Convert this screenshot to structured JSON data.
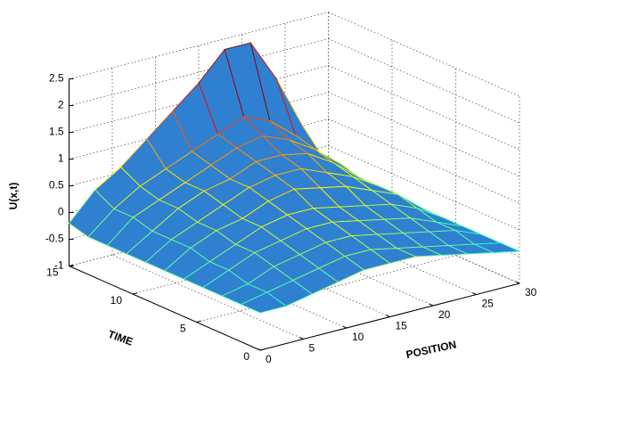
{
  "chart_data": {
    "type": "surface",
    "zlabel": "U(x,t)",
    "ylabel": "TIME",
    "xlabel": "POSITION",
    "x": [
      0,
      3,
      6,
      9,
      12,
      15,
      18,
      21,
      24,
      27,
      30
    ],
    "y": [
      0,
      1.5,
      3,
      4.5,
      6,
      7.5,
      9,
      10.5,
      12,
      13.5,
      15
    ],
    "z": [
      [
        -0.3,
        -0.3,
        -0.2,
        -0.1,
        0,
        0,
        0,
        -0.1,
        -0.2,
        -0.3,
        -0.4
      ],
      [
        -0.3,
        -0.2,
        -0.1,
        0,
        0.1,
        0.1,
        0,
        -0.1,
        -0.2,
        -0.3,
        -0.4
      ],
      [
        -0.3,
        -0.2,
        0,
        0.1,
        0.2,
        0.2,
        0.1,
        0,
        -0.1,
        -0.2,
        -0.4
      ],
      [
        -0.3,
        -0.1,
        0.1,
        0.2,
        0.3,
        0.3,
        0.2,
        0.1,
        0,
        -0.2,
        -0.4
      ],
      [
        -0.3,
        -0.1,
        0.1,
        0.3,
        0.4,
        0.4,
        0.3,
        0.2,
        0.1,
        -0.1,
        -0.4
      ],
      [
        -0.3,
        0,
        0.2,
        0.3,
        0.5,
        0.6,
        0.5,
        0.4,
        0.2,
        0,
        -0.4
      ],
      [
        -0.3,
        0,
        0.2,
        0.4,
        0.6,
        0.7,
        0.7,
        0.5,
        0.3,
        0,
        -0.4
      ],
      [
        -0.3,
        0,
        0.3,
        0.5,
        0.6,
        0.8,
        0.8,
        0.7,
        0.4,
        0,
        -0.4
      ],
      [
        -0.3,
        0.1,
        0.3,
        0.5,
        0.7,
        0.9,
        1,
        0.8,
        0.5,
        0.1,
        -0.4
      ],
      [
        -0.3,
        0.1,
        0.4,
        0.6,
        0.8,
        1,
        1.2,
        1,
        0.6,
        0.1,
        -0.4
      ],
      [
        -0.2,
        0.3,
        0.6,
        1,
        1.4,
        1.8,
        2.3,
        2.3,
        1.5,
        0.5,
        -0.4
      ]
    ],
    "xlim": [
      0,
      30
    ],
    "ylim": [
      0,
      15
    ],
    "zlim": [
      -1,
      2.5
    ],
    "xticks": [
      0,
      5,
      10,
      15,
      20,
      25,
      30
    ],
    "yticks": [
      0,
      5,
      10,
      15
    ],
    "zticks": [
      -1,
      -0.5,
      0,
      0.5,
      1,
      1.5,
      2,
      2.5
    ],
    "grid": true,
    "color": "#2f80d0"
  }
}
